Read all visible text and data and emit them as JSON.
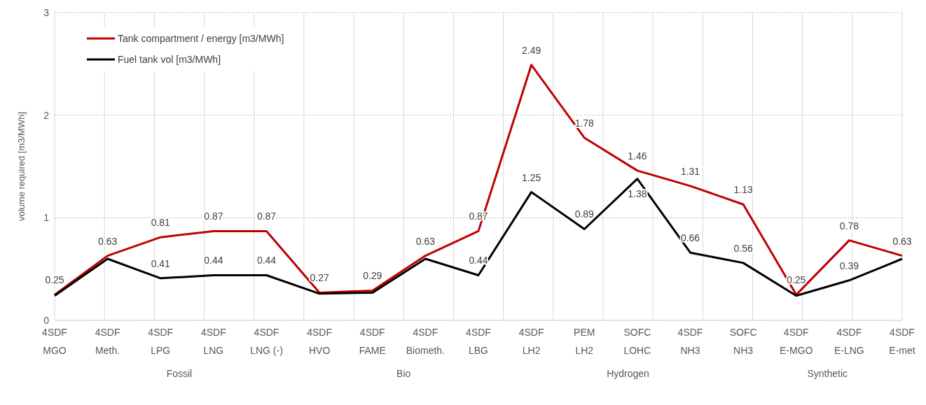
{
  "chart_data": {
    "type": "line",
    "ylabel": "volume required [m3/MWh]",
    "categories": [
      "4SDF\nMGO",
      "4SDF\nMeth.",
      "4SDF\nLPG",
      "4SDF\nLNG",
      "4SDF\nLNG (-)",
      "4SDF\nHVO",
      "4SDF\nFAME",
      "4SDF\nBiometh.",
      "4SDF\nLBG",
      "4SDF\nLH2",
      "PEM\nLH2",
      "SOFC\nLOHC",
      "4SDF\nNH3",
      "SOFC\nNH3",
      "4SDF\nE-MGO",
      "4SDF\nE-LNG",
      "4SDF\nE-met"
    ],
    "series": [
      {
        "name": "Tank compartment / energy [m3/MWh]",
        "color": "#c00000",
        "values": [
          0.25,
          0.63,
          0.81,
          0.87,
          0.87,
          0.27,
          0.29,
          0.63,
          0.87,
          2.49,
          1.78,
          1.46,
          1.31,
          1.13,
          0.25,
          0.78,
          0.63
        ],
        "value_labels": [
          "0.25",
          "0.63",
          "0.81",
          "0.87",
          "0.87",
          "0.27",
          "0.29",
          "0.63",
          "0.87",
          "2.49",
          "1.78",
          "1.46",
          "1.31",
          "1.13",
          "0.25",
          "0.78",
          "0.63"
        ]
      },
      {
        "name": "Fuel tank vol [m3/MWh]",
        "color": "#000000",
        "values": [
          0.24,
          0.6,
          0.41,
          0.44,
          0.44,
          0.26,
          0.27,
          0.6,
          0.44,
          1.25,
          0.89,
          1.38,
          0.66,
          0.56,
          0.24,
          0.39,
          0.6
        ],
        "value_labels": [
          null,
          null,
          "0.41",
          "0.44",
          "0.44",
          null,
          null,
          null,
          "0.44",
          "1.25",
          "0.89",
          "1.38",
          "0.66",
          "0.56",
          null,
          "0.39",
          null
        ]
      }
    ],
    "ylim": [
      0,
      3
    ],
    "yticks": [
      0,
      1,
      2,
      3
    ],
    "grid": true,
    "legend": "top left",
    "marker": "none",
    "line_style": "solid",
    "annotations": [
      "Fossil",
      "Bio",
      "Hydrogen",
      "Synthetic"
    ]
  }
}
